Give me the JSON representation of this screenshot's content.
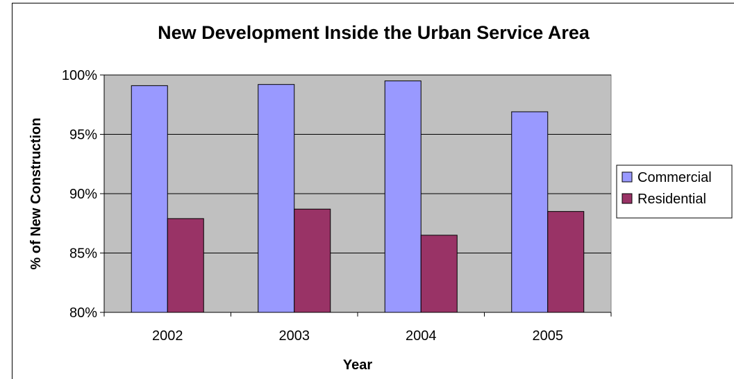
{
  "chart_data": {
    "type": "bar",
    "title": "New Development Inside the Urban Service Area",
    "xlabel": "Year",
    "ylabel": "% of New Construction",
    "categories": [
      "2002",
      "2003",
      "2004",
      "2005"
    ],
    "series": [
      {
        "name": "Commercial",
        "color": "#9999ff",
        "values": [
          99.1,
          99.2,
          99.5,
          96.9
        ]
      },
      {
        "name": "Residential",
        "color": "#993366",
        "values": [
          87.9,
          88.7,
          86.5,
          88.5
        ]
      }
    ],
    "ylim": [
      80,
      100
    ],
    "yticks": [
      80,
      85,
      90,
      95,
      100
    ],
    "ytick_labels": [
      "80%",
      "85%",
      "90%",
      "95%",
      "100%"
    ],
    "grid": true,
    "plot_background": "#c0c0c0",
    "legend_position": "right"
  }
}
